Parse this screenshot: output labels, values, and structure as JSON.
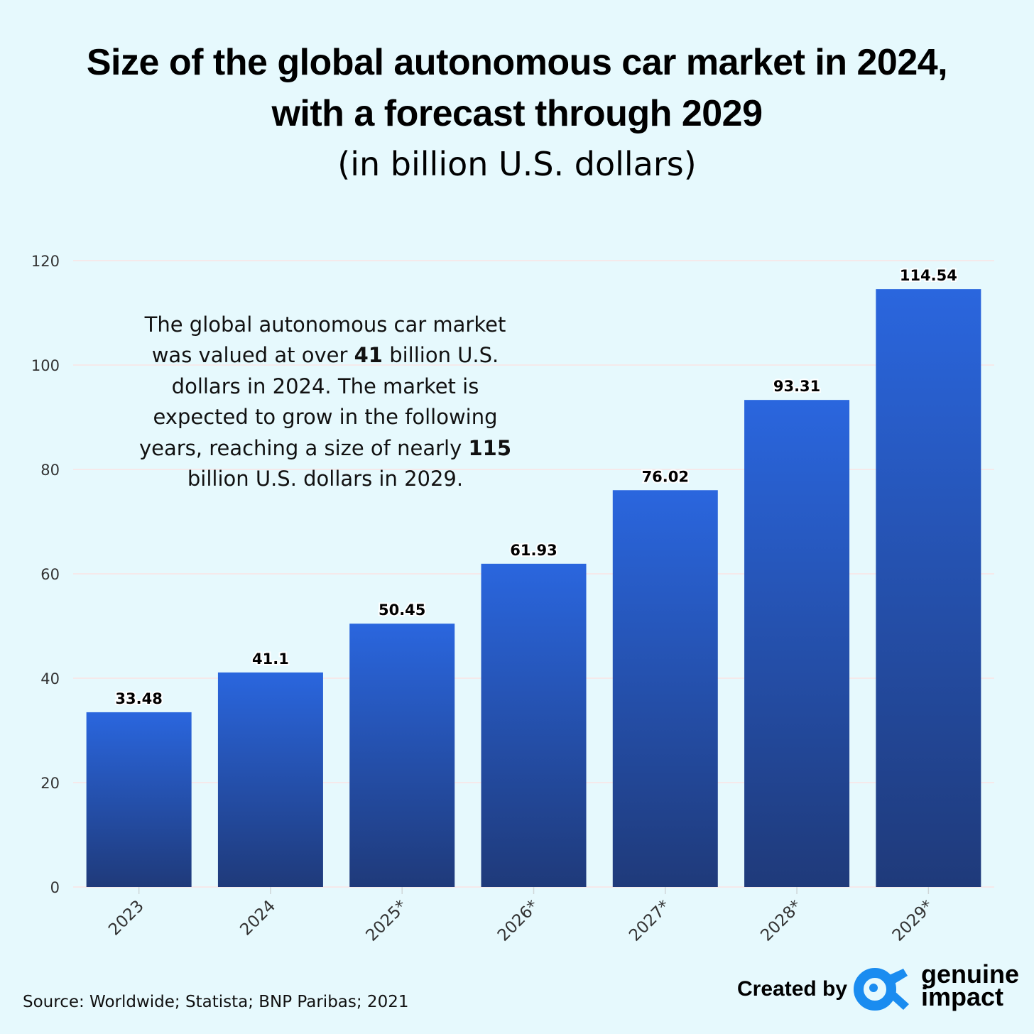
{
  "title": {
    "line1": "Size of the global autonomous car market in 2024,",
    "line2": "with a forecast through 2029",
    "subtitle": "(in billion U.S. dollars)"
  },
  "annotation": {
    "part1": "The global autonomous car market was valued at over ",
    "bold1": "41",
    "part2": " billion U.S. dollars in 2024. The market is expected to grow in the following years, reaching a size of nearly ",
    "bold2": "115",
    "part3": " billion U.S. dollars in 2029."
  },
  "footer": {
    "source": "Source: Worldwide; Statista; BNP Paribas; 2021",
    "created_by": "Created by",
    "brand_line1": "genuine",
    "brand_line2": "impact"
  },
  "colors": {
    "background": "#e6f9fd",
    "bar_top": "#2a66de",
    "bar_bottom": "#1f3a7a",
    "gridline": "#f5e9ea",
    "logo_blue": "#1a8cf0"
  },
  "chart_data": {
    "type": "bar",
    "title": "Size of the global autonomous car market in 2024, with a forecast through 2029",
    "subtitle": "(in billion U.S. dollars)",
    "categories": [
      "2023",
      "2024",
      "2025*",
      "2026*",
      "2027*",
      "2028*",
      "2029*"
    ],
    "values": [
      33.48,
      41.1,
      50.45,
      61.93,
      76.02,
      93.31,
      114.54
    ],
    "value_labels": [
      "33.48",
      "41.1",
      "50.45",
      "61.93",
      "76.02",
      "93.31",
      "114.54"
    ],
    "yticks": [
      0,
      20,
      40,
      60,
      80,
      100,
      120
    ],
    "ylim": [
      0,
      120
    ],
    "grid": true,
    "legend": "none",
    "xlabel": "",
    "ylabel": ""
  }
}
